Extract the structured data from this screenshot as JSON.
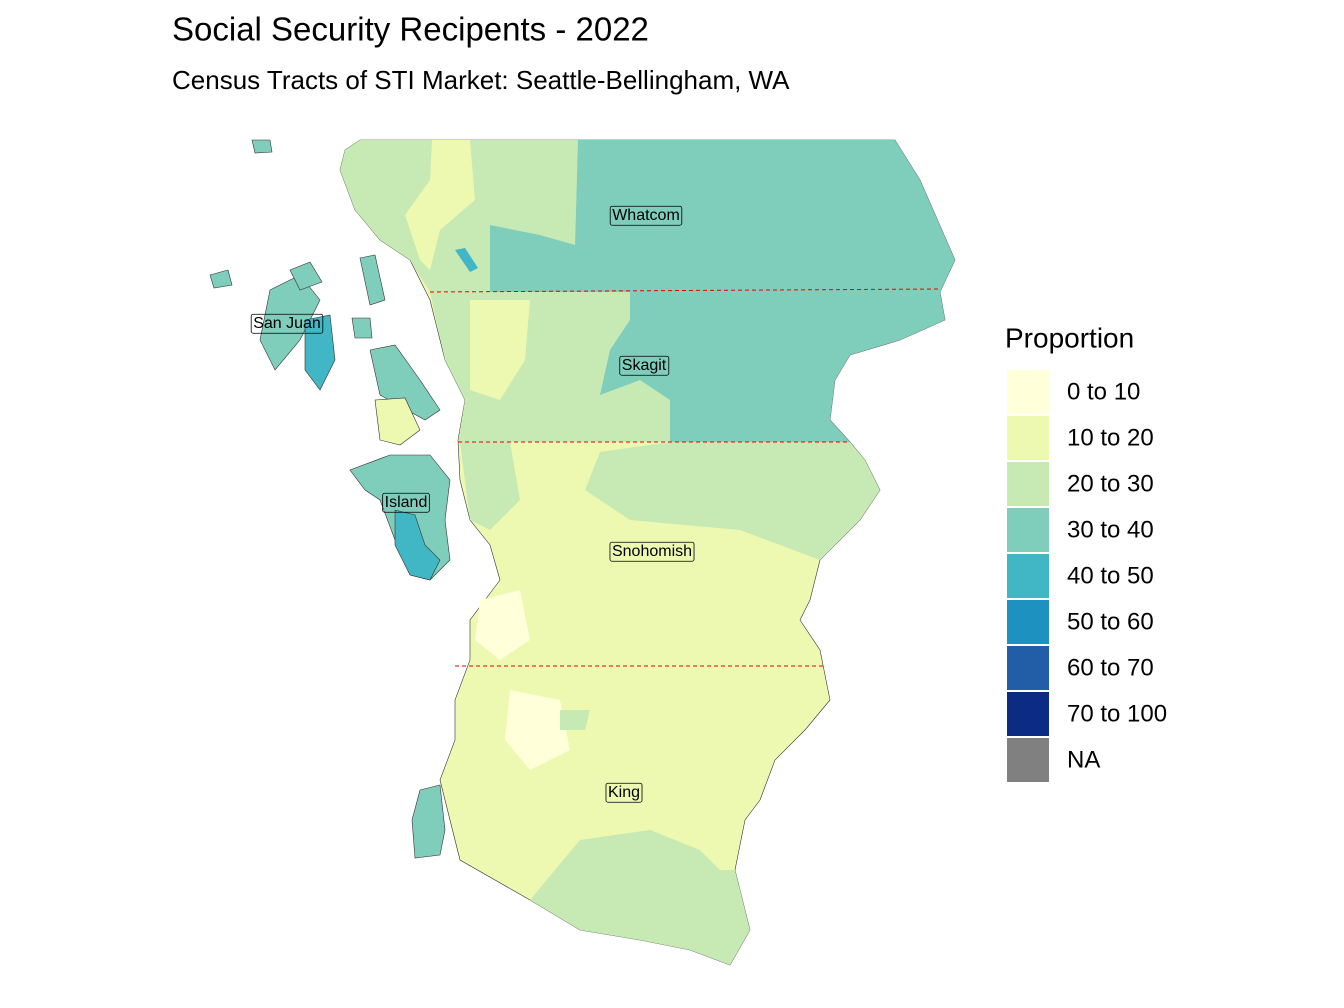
{
  "title": "Social Security Recipents - 2022",
  "subtitle": "Census Tracts of STI Market: Seattle-Bellingham, WA",
  "legend": {
    "title": "Proportion",
    "items": [
      {
        "label": "0 to 10",
        "color": "#ffffd9"
      },
      {
        "label": "10 to 20",
        "color": "#edf8b1"
      },
      {
        "label": "20 to 30",
        "color": "#c7e9b4"
      },
      {
        "label": "30 to 40",
        "color": "#7fcdbb"
      },
      {
        "label": "40 to 50",
        "color": "#41b6c4"
      },
      {
        "label": "50 to 60",
        "color": "#1d91c0"
      },
      {
        "label": "60 to 70",
        "color": "#225ea8"
      },
      {
        "label": "70 to 100",
        "color": "#0c2c84"
      },
      {
        "label": "NA",
        "color": "#808080"
      }
    ]
  },
  "counties": [
    {
      "label": "Whatcom"
    },
    {
      "label": "Skagit"
    },
    {
      "label": "San Juan"
    },
    {
      "label": "Island"
    },
    {
      "label": "Snohomish"
    },
    {
      "label": "King"
    }
  ]
}
